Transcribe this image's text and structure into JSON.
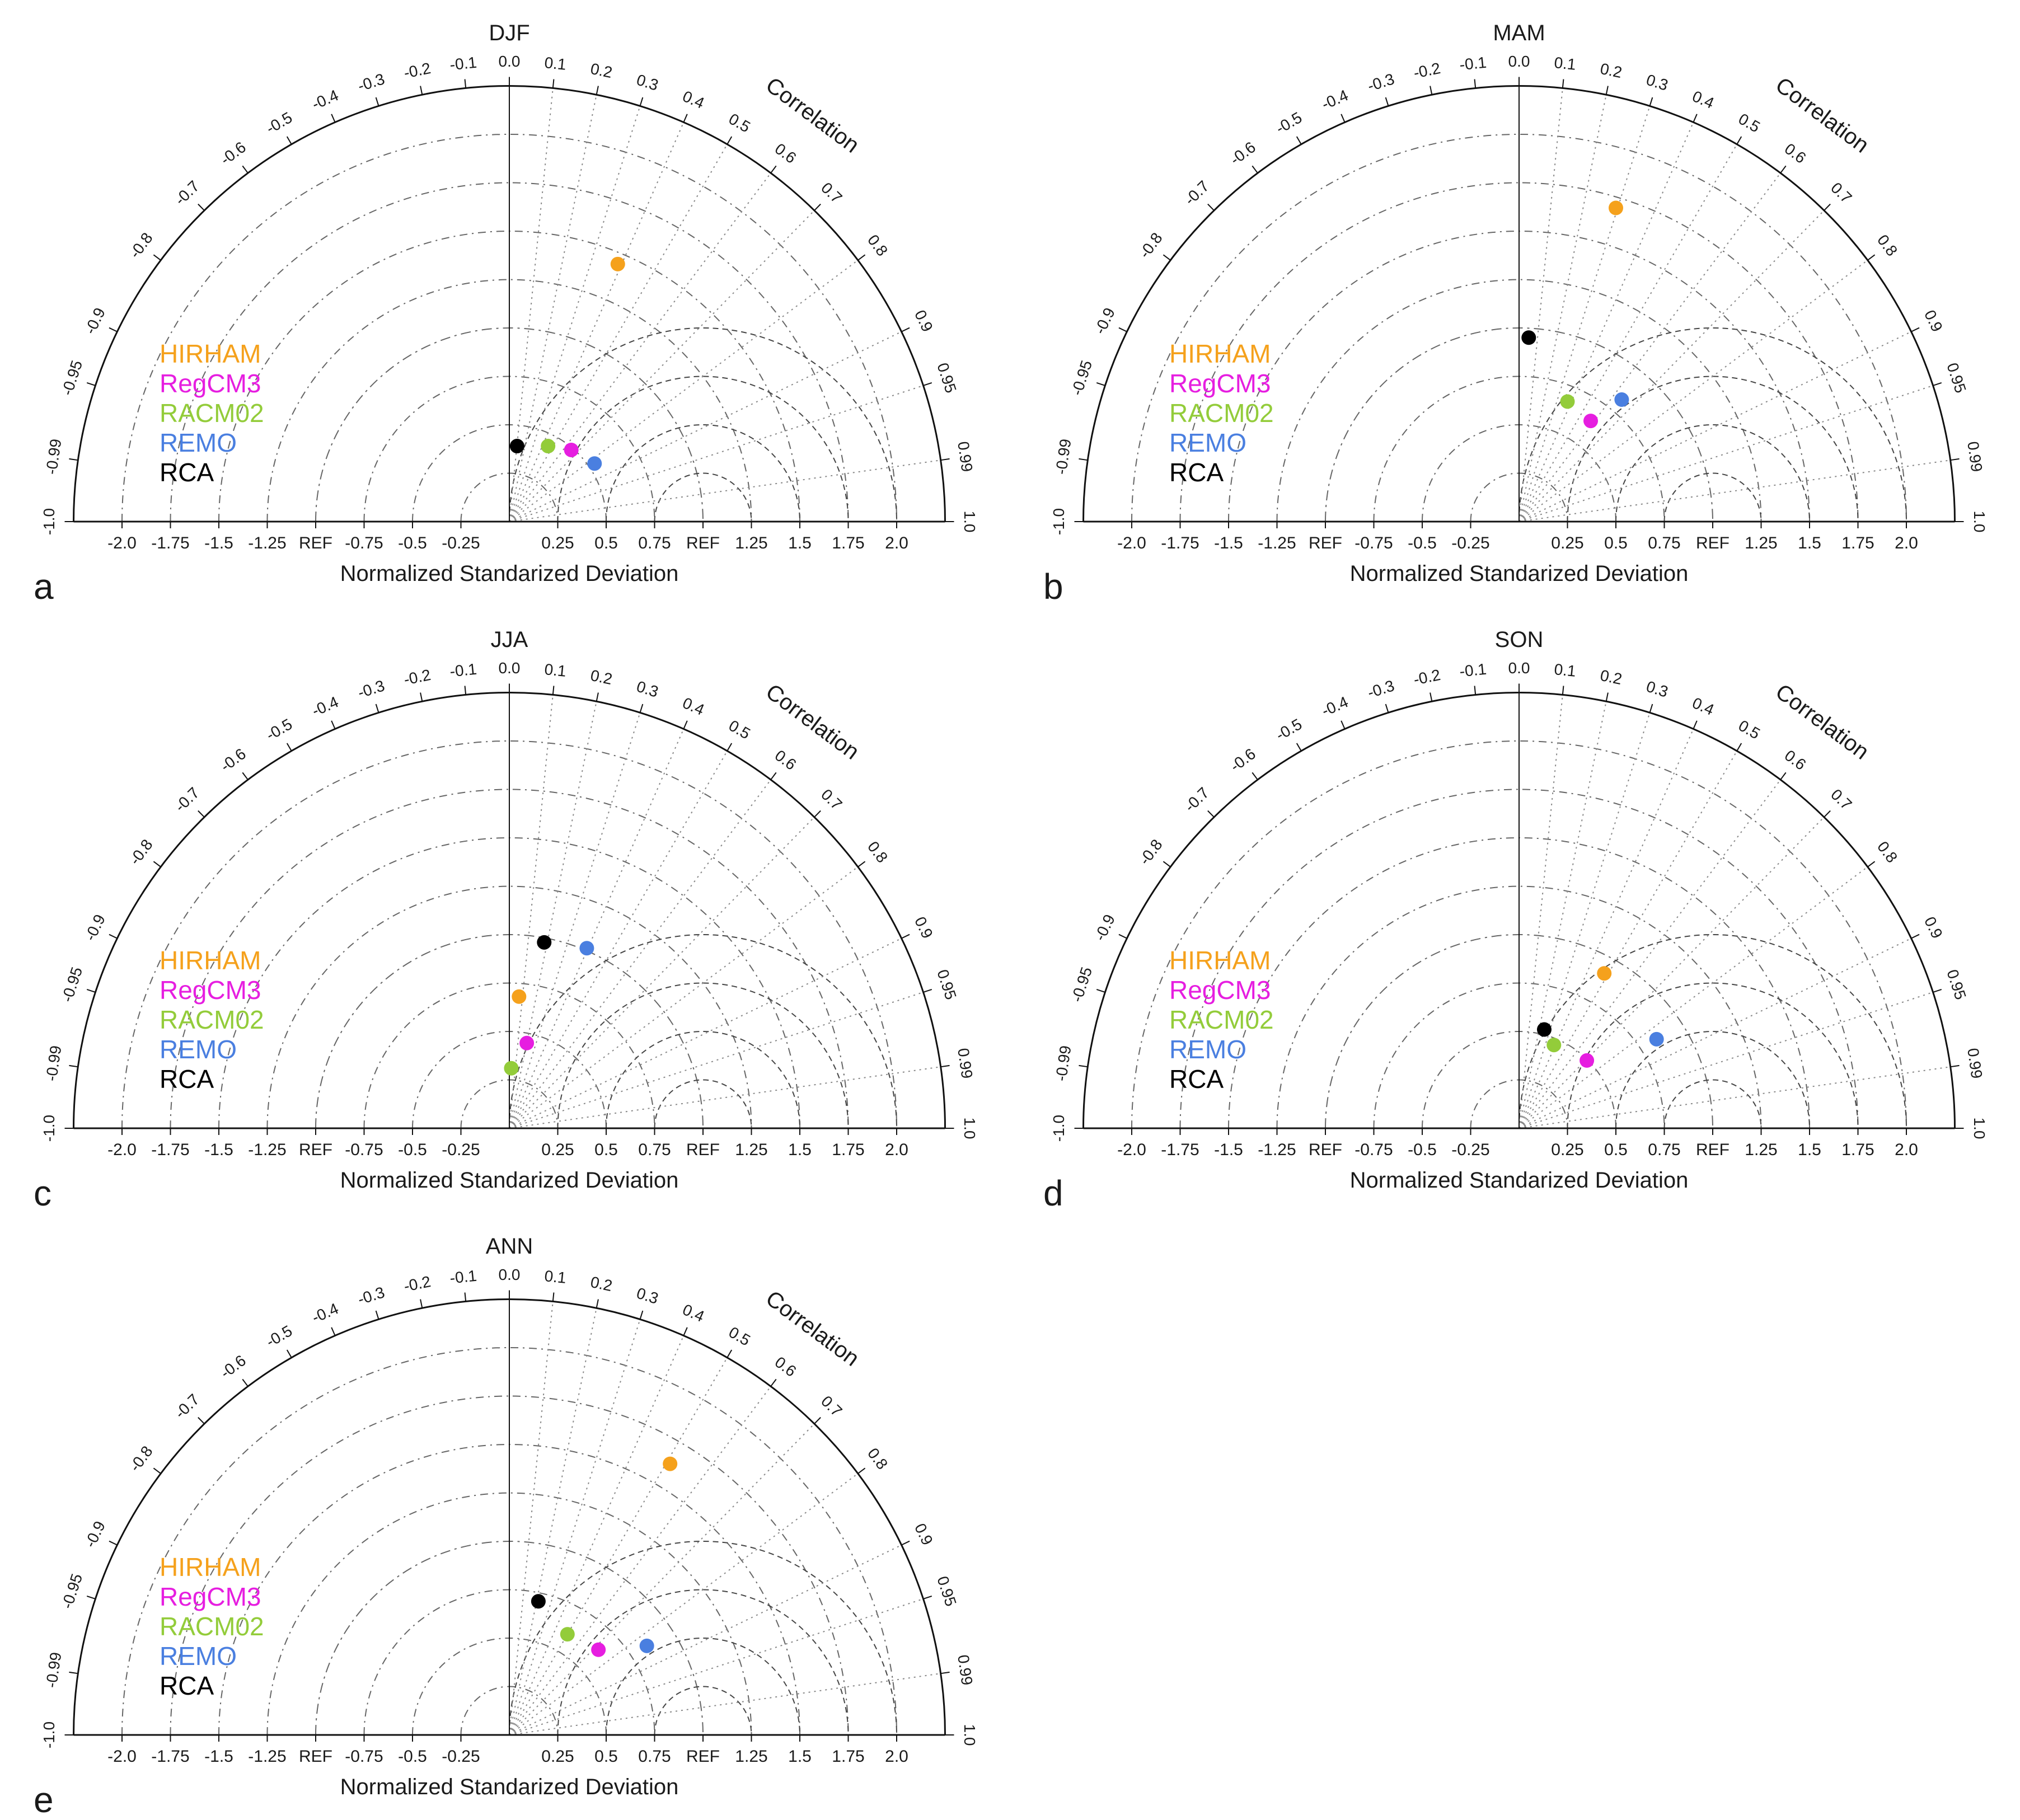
{
  "figure": {
    "x_axis_label": "Normalized Standarized Deviation",
    "correlation_label": "Correlation",
    "x_tick_labels": [
      "-2.0",
      "-1.75",
      "-1.5",
      "-1.25",
      "REF",
      "-0.75",
      "-0.5",
      "-0.25",
      "0.25",
      "0.5",
      "0.75",
      "REF",
      "1.25",
      "1.5",
      "1.75",
      "2.0"
    ],
    "x_tick_values": [
      -2.0,
      -1.75,
      -1.5,
      -1.25,
      -1.0,
      -0.75,
      -0.5,
      -0.25,
      0.25,
      0.5,
      0.75,
      1.0,
      1.25,
      1.5,
      1.75,
      2.0
    ],
    "correlation_ticks": [
      {
        "label": "0.0",
        "value": 0.0
      },
      {
        "label": "0.1",
        "value": 0.1
      },
      {
        "label": "0.2",
        "value": 0.2
      },
      {
        "label": "0.3",
        "value": 0.3
      },
      {
        "label": "0.4",
        "value": 0.4
      },
      {
        "label": "0.5",
        "value": 0.5
      },
      {
        "label": "0.6",
        "value": 0.6
      },
      {
        "label": "0.7",
        "value": 0.7
      },
      {
        "label": "0.8",
        "value": 0.8
      },
      {
        "label": "0.9",
        "value": 0.9
      },
      {
        "label": "0.95",
        "value": 0.95
      },
      {
        "label": "0.99",
        "value": 0.99
      },
      {
        "label": "1.0",
        "value": 1.0
      },
      {
        "label": "-0.1",
        "value": -0.1
      },
      {
        "label": "-0.2",
        "value": -0.2
      },
      {
        "label": "-0.3",
        "value": -0.3
      },
      {
        "label": "-0.4",
        "value": -0.4
      },
      {
        "label": "-0.5",
        "value": -0.5
      },
      {
        "label": "-0.6",
        "value": -0.6
      },
      {
        "label": "-0.7",
        "value": -0.7
      },
      {
        "label": "-0.8",
        "value": -0.8
      },
      {
        "label": "-0.9",
        "value": -0.9
      },
      {
        "label": "-0.95",
        "value": -0.95
      },
      {
        "label": "-0.99",
        "value": -0.99
      },
      {
        "label": "-1.0",
        "value": -1.0
      }
    ],
    "models": [
      {
        "name": "HIRHAM",
        "color": "#f5a11c"
      },
      {
        "name": "RegCM3",
        "color": "#e61ee0"
      },
      {
        "name": "RACM02",
        "color": "#93cc3a"
      },
      {
        "name": "REMO",
        "color": "#4a7fe0"
      },
      {
        "name": "RCA",
        "color": "#000000"
      }
    ]
  },
  "chart_data": [
    {
      "type": "scatter",
      "subtype": "taylor_diagram",
      "panel_letter": "a",
      "title": "DJF",
      "xlabel": "Normalized Standarized Deviation",
      "xlim": [
        -2.25,
        2.25
      ],
      "points": [
        {
          "model": "HIRHAM",
          "x": 0.56,
          "y": 1.33
        },
        {
          "model": "RegCM3",
          "x": 0.32,
          "y": 0.37
        },
        {
          "model": "RACM02",
          "x": 0.2,
          "y": 0.39
        },
        {
          "model": "REMO",
          "x": 0.44,
          "y": 0.3
        },
        {
          "model": "RCA",
          "x": 0.04,
          "y": 0.39
        }
      ]
    },
    {
      "type": "scatter",
      "subtype": "taylor_diagram",
      "panel_letter": "b",
      "title": "MAM",
      "xlabel": "Normalized Standarized Deviation",
      "xlim": [
        -2.25,
        2.25
      ],
      "points": [
        {
          "model": "HIRHAM",
          "x": 0.5,
          "y": 1.62
        },
        {
          "model": "RegCM3",
          "x": 0.37,
          "y": 0.52
        },
        {
          "model": "RACM02",
          "x": 0.25,
          "y": 0.62
        },
        {
          "model": "REMO",
          "x": 0.53,
          "y": 0.63
        },
        {
          "model": "RCA",
          "x": 0.05,
          "y": 0.95
        }
      ]
    },
    {
      "type": "scatter",
      "subtype": "taylor_diagram",
      "panel_letter": "c",
      "title": "JJA",
      "xlabel": "Normalized Standarized Deviation",
      "xlim": [
        -2.25,
        2.25
      ],
      "points": [
        {
          "model": "HIRHAM",
          "x": 0.05,
          "y": 0.68
        },
        {
          "model": "RegCM3",
          "x": 0.09,
          "y": 0.44
        },
        {
          "model": "RACM02",
          "x": 0.01,
          "y": 0.31
        },
        {
          "model": "REMO",
          "x": 0.4,
          "y": 0.93
        },
        {
          "model": "RCA",
          "x": 0.18,
          "y": 0.96
        }
      ]
    },
    {
      "type": "scatter",
      "subtype": "taylor_diagram",
      "panel_letter": "d",
      "title": "SON",
      "xlabel": "Normalized Standarized Deviation",
      "xlim": [
        -2.25,
        2.25
      ],
      "points": [
        {
          "model": "HIRHAM",
          "x": 0.44,
          "y": 0.8
        },
        {
          "model": "RegCM3",
          "x": 0.35,
          "y": 0.35
        },
        {
          "model": "RACM02",
          "x": 0.18,
          "y": 0.43
        },
        {
          "model": "REMO",
          "x": 0.71,
          "y": 0.46
        },
        {
          "model": "RCA",
          "x": 0.13,
          "y": 0.51
        }
      ]
    },
    {
      "type": "scatter",
      "subtype": "taylor_diagram",
      "panel_letter": "e",
      "title": "ANN",
      "xlabel": "Normalized Standarized Deviation",
      "xlim": [
        -2.25,
        2.25
      ],
      "points": [
        {
          "model": "HIRHAM",
          "x": 0.83,
          "y": 1.4
        },
        {
          "model": "RegCM3",
          "x": 0.46,
          "y": 0.44
        },
        {
          "model": "RACM02",
          "x": 0.3,
          "y": 0.52
        },
        {
          "model": "REMO",
          "x": 0.71,
          "y": 0.46
        },
        {
          "model": "RCA",
          "x": 0.15,
          "y": 0.69
        }
      ]
    }
  ]
}
